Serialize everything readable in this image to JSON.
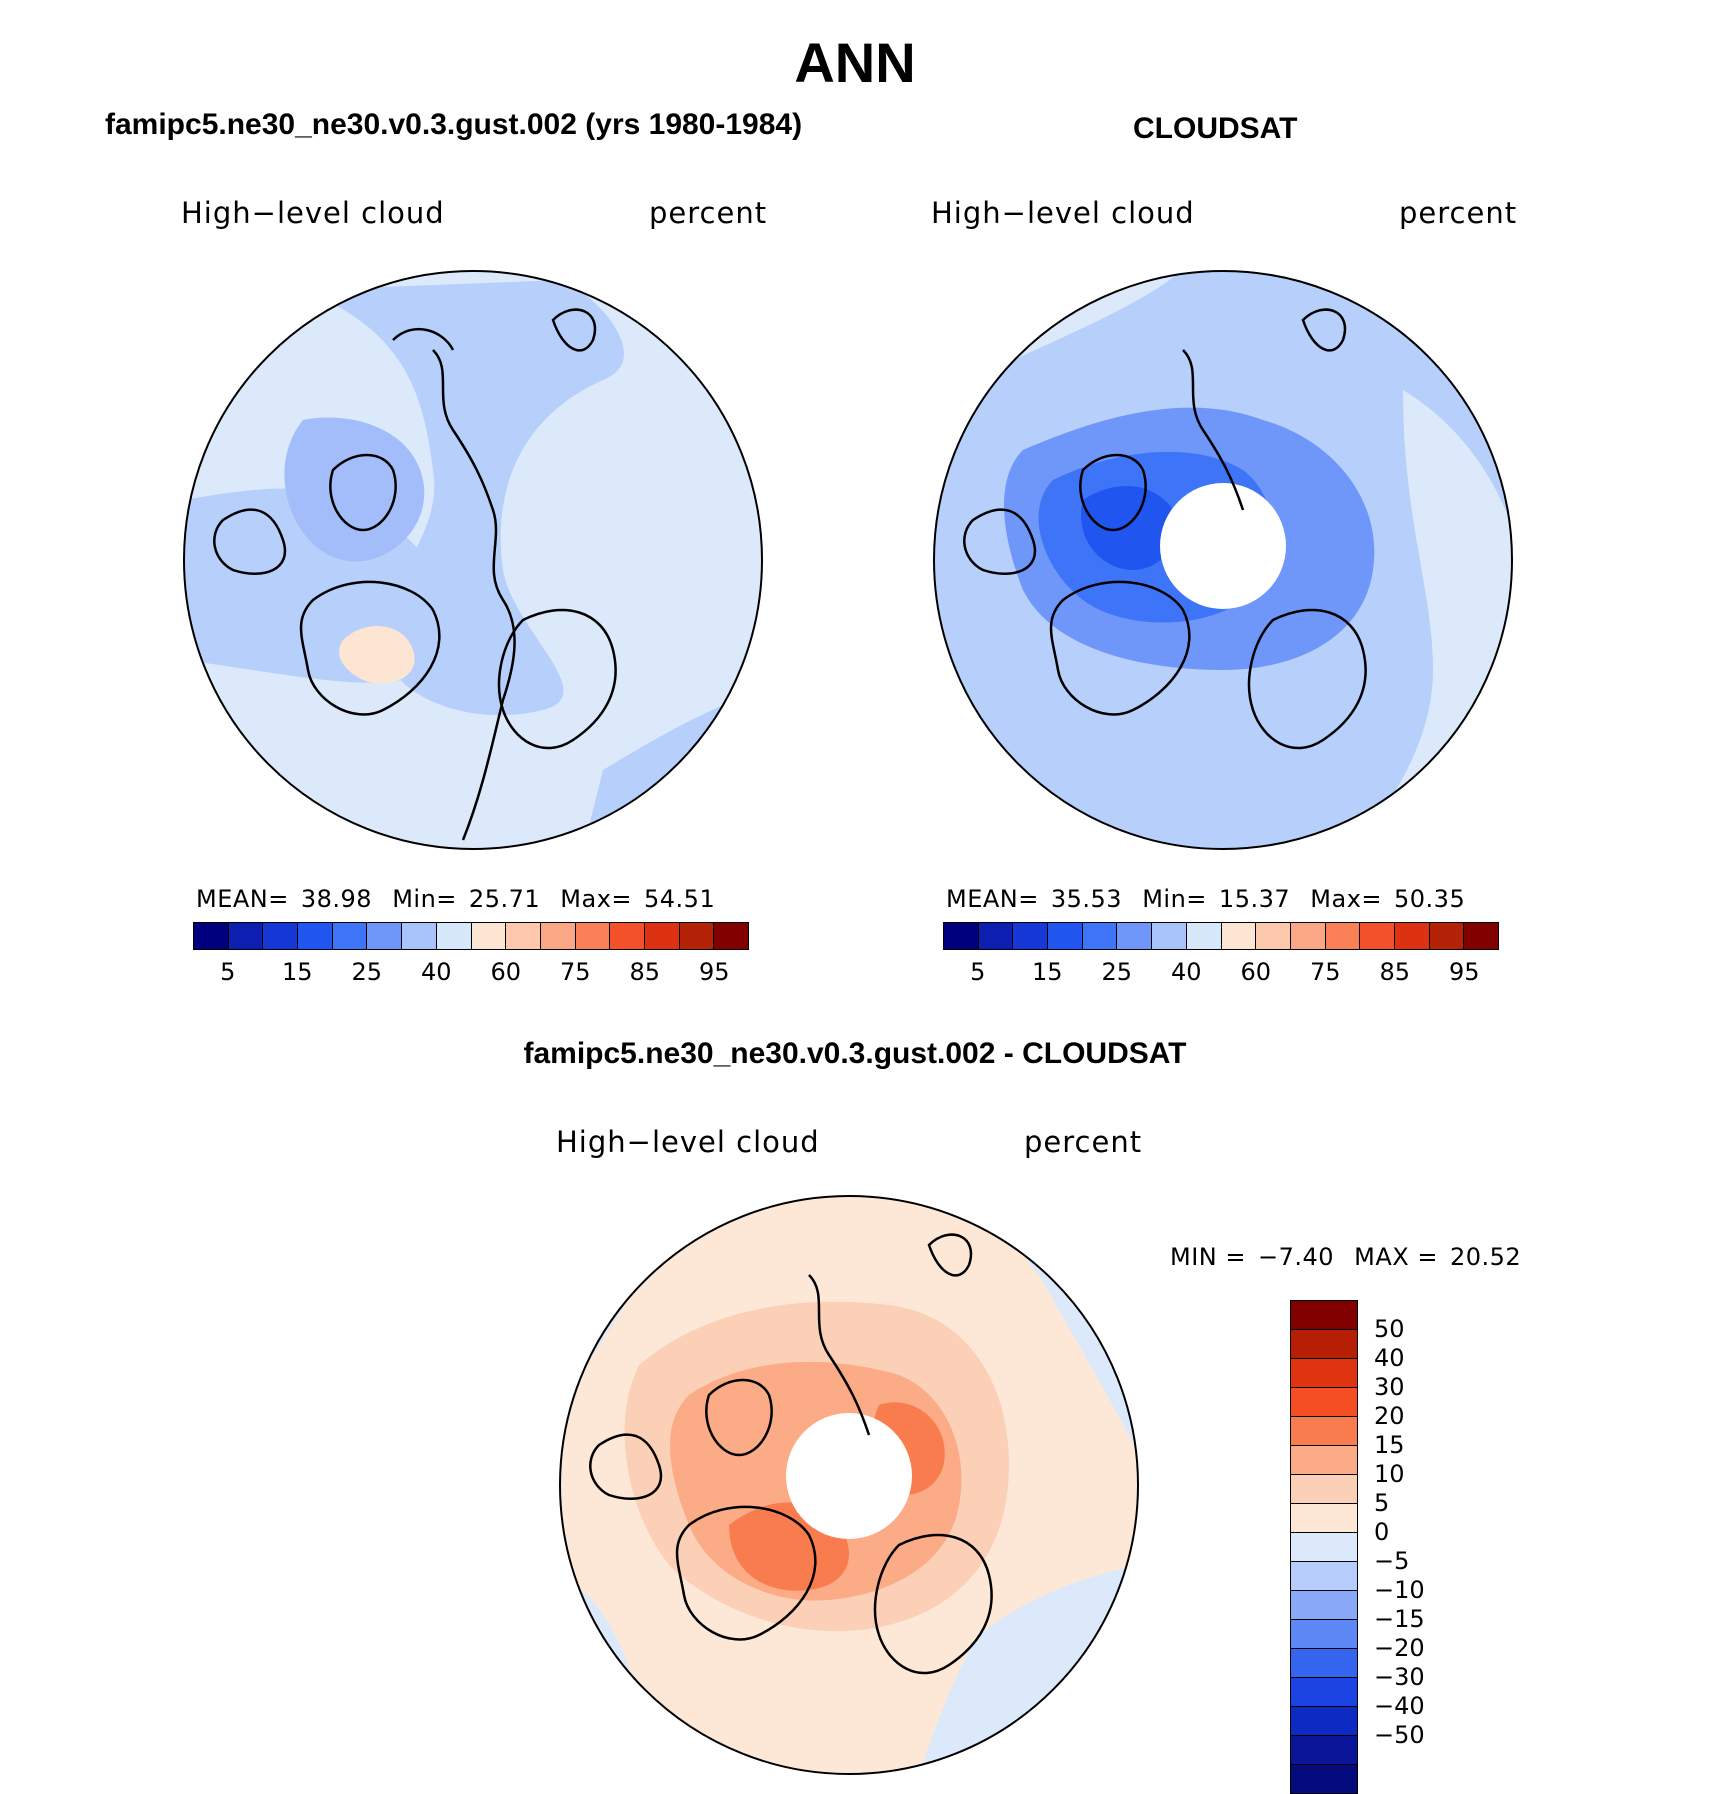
{
  "main_title": "ANN",
  "panels": [
    {
      "title": "famipc5.ne30_ne30.v0.3.gust.002 (yrs 1980-1984)",
      "variable": "High−level cloud",
      "units": "percent",
      "stats": {
        "mean_label": "MEAN=",
        "mean": "38.98",
        "min_label": "Min=",
        "min": "25.71",
        "max_label": "Max=",
        "max": "54.51"
      },
      "base_color": "#dbe9fb",
      "has_hole": false
    },
    {
      "title": "CLOUDSAT",
      "variable": "High−level cloud",
      "units": "percent",
      "stats": {
        "mean_label": "MEAN=",
        "mean": "35.53",
        "min_label": "Min=",
        "min": "15.37",
        "max_label": "Max=",
        "max": "50.35"
      },
      "base_color": "#b7cffb",
      "has_hole": true
    },
    {
      "title": "famipc5.ne30_ne30.v0.3.gust.002 - CLOUDSAT",
      "variable": "High−level cloud",
      "units": "percent",
      "stats": {
        "min_label": "MIN =",
        "min": "−7.40",
        "max_label": "MAX =",
        "max": "20.52"
      },
      "base_color": "#fde7d6",
      "has_hole": true
    }
  ],
  "abs_colorbar": {
    "colors": [
      "#00007f",
      "#0d1fb0",
      "#1538d6",
      "#2155ef",
      "#3e74f7",
      "#6f96f9",
      "#a8c4fb",
      "#d8e8fb",
      "#fde5d3",
      "#fcc9ad",
      "#fba785",
      "#f87f56",
      "#f2512b",
      "#dd3212",
      "#b42208",
      "#810000"
    ],
    "ticks": [
      "5",
      "15",
      "25",
      "40",
      "60",
      "75",
      "85",
      "95"
    ]
  },
  "diff_colorbar": {
    "colors": [
      "#800000",
      "#b51f06",
      "#de3410",
      "#f44e22",
      "#f97c4f",
      "#fbab86",
      "#fcd0b6",
      "#fde8d8",
      "#dbe9fb",
      "#b6ccfa",
      "#88a9f7",
      "#5c87f4",
      "#3564ef",
      "#1c44e3",
      "#0d2ac2",
      "#0a159a",
      "#050a7c"
    ],
    "ticks": [
      "50",
      "40",
      "30",
      "20",
      "15",
      "10",
      "5",
      "0",
      "−5",
      "−10",
      "−15",
      "−20",
      "−30",
      "−40",
      "−50"
    ]
  }
}
